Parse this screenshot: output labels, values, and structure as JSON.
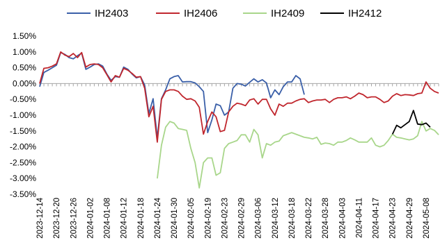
{
  "chart_data": {
    "type": "line",
    "title": "",
    "xlabel": "",
    "ylabel": "",
    "ylim": [
      -3.5,
      1.5
    ],
    "y_ticks": [
      "1.50%",
      "1.00%",
      "0.50%",
      "0.00%",
      "-0.50%",
      "-1.00%",
      "-1.50%",
      "-2.00%",
      "-2.50%",
      "-3.00%",
      "-3.50%"
    ],
    "y_tick_values": [
      1.5,
      1.0,
      0.5,
      0.0,
      -0.5,
      -1.0,
      -1.5,
      -2.0,
      -2.5,
      -3.0,
      -3.5
    ],
    "x_tick_labels": [
      "2023-12-14",
      "2023-12-20",
      "2023-12-26",
      "2024-01-02",
      "2024-01-08",
      "2024-01-12",
      "2024-01-18",
      "2024-01-24",
      "2024-01-30",
      "2024-02-05",
      "2024-02-19",
      "2024-02-23",
      "2024-02-29",
      "2024-03-06",
      "2024-03-12",
      "2024-03-18",
      "2024-03-22",
      "2024-03-28",
      "2024-04-03",
      "2024-04-11",
      "2024-04-17",
      "2024-04-23",
      "2024-04-29",
      "2024-05-08"
    ],
    "x_tick_every": 4,
    "n_points": 96,
    "legend_position": "top",
    "grid": false,
    "series": [
      {
        "name": "IH2403",
        "color": "#3a5fa8",
        "start_index": 0,
        "values": [
          -0.1,
          0.35,
          0.42,
          0.5,
          0.58,
          0.98,
          0.92,
          0.82,
          0.78,
          0.88,
          0.96,
          0.45,
          0.52,
          0.6,
          0.62,
          0.55,
          0.3,
          0.1,
          0.22,
          0.2,
          0.52,
          0.45,
          0.3,
          0.18,
          0.22,
          -0.05,
          -0.95,
          -0.48,
          -1.72,
          -0.48,
          -0.2,
          0.15,
          0.22,
          0.25,
          0.05,
          0.06,
          0.06,
          0.02,
          -0.1,
          -0.25,
          -1.55,
          -1.15,
          -0.65,
          -0.7,
          -1.0,
          -0.9,
          -0.15,
          0.0,
          -0.02,
          -0.08,
          0.04,
          0.15,
          0.05,
          0.12,
          0.02,
          -0.45,
          -0.2,
          -0.35,
          -0.1,
          0.05,
          0.05,
          0.25,
          0.15,
          -0.35
        ]
      },
      {
        "name": "IH2406",
        "color": "#c0262d",
        "start_index": 0,
        "values": [
          0.0,
          0.48,
          0.5,
          0.55,
          0.62,
          1.0,
          0.9,
          0.85,
          0.95,
          0.82,
          0.98,
          0.52,
          0.6,
          0.62,
          0.6,
          0.5,
          0.28,
          0.05,
          0.25,
          0.2,
          0.48,
          0.42,
          0.32,
          0.2,
          0.22,
          -0.15,
          -1.05,
          -0.72,
          -1.85,
          -0.5,
          -0.25,
          -0.2,
          -0.2,
          -0.25,
          -0.4,
          -0.5,
          -0.48,
          -0.55,
          -0.75,
          -1.6,
          -1.2,
          -0.9,
          -1.05,
          -1.52,
          -1.48,
          -0.9,
          -0.72,
          -0.62,
          -0.65,
          -0.7,
          -0.52,
          -0.48,
          -0.65,
          -0.5,
          -0.5,
          -0.8,
          -1.0,
          -0.65,
          -0.72,
          -0.62,
          -0.62,
          -0.55,
          -0.5,
          -0.48,
          -0.6,
          -0.55,
          -0.52,
          -0.52,
          -0.5,
          -0.6,
          -0.5,
          -0.45,
          -0.45,
          -0.42,
          -0.48,
          -0.4,
          -0.3,
          -0.35,
          -0.45,
          -0.42,
          -0.42,
          -0.5,
          -0.6,
          -0.55,
          -0.4,
          -0.32,
          -0.38,
          -0.35,
          -0.36,
          -0.38,
          -0.32,
          -0.3,
          0.05,
          -0.15,
          -0.25,
          -0.3
        ]
      },
      {
        "name": "IH2409",
        "color": "#a8d68a",
        "start_index": 28,
        "values": [
          -3.0,
          -1.95,
          -1.38,
          -1.2,
          -1.25,
          -1.42,
          -1.45,
          -1.48,
          -2.05,
          -2.5,
          -3.3,
          -2.5,
          -2.35,
          -2.35,
          -2.9,
          -2.82,
          -2.05,
          -1.9,
          -1.85,
          -1.8,
          -1.62,
          -1.62,
          -1.85,
          -1.45,
          -1.62,
          -2.35,
          -1.9,
          -1.95,
          -1.85,
          -1.82,
          -1.65,
          -1.6,
          -1.55,
          -1.6,
          -1.65,
          -1.7,
          -1.72,
          -1.75,
          -1.7,
          -1.92,
          -1.88,
          -1.9,
          -1.95,
          -1.85,
          -1.85,
          -1.8,
          -1.72,
          -1.78,
          -1.85,
          -1.85,
          -1.85,
          -1.72,
          -1.95,
          -2.0,
          -1.95,
          -1.8,
          -1.6,
          -1.7,
          -1.72,
          -1.75,
          -1.78,
          -1.75,
          -1.65,
          -1.2,
          -1.5,
          -1.42,
          -1.48,
          -1.62
        ]
      },
      {
        "name": "IH2412",
        "color": "#000000",
        "start_index": 84,
        "values": [
          -1.6,
          -1.32,
          -1.4,
          -1.3,
          -1.2,
          -0.85,
          -1.28,
          -1.3,
          -1.25,
          -1.38
        ]
      }
    ]
  }
}
